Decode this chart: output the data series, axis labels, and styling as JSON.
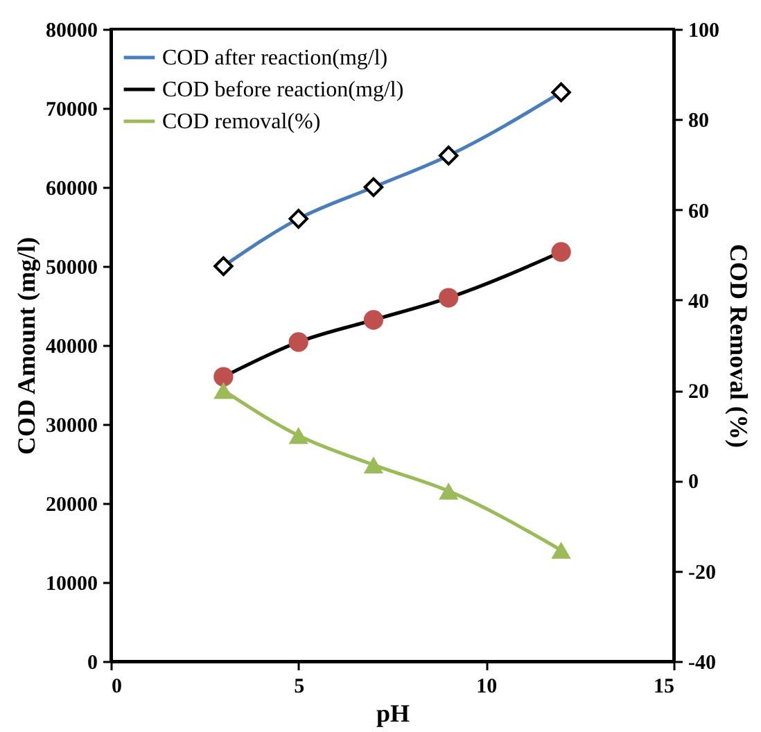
{
  "chart_data": {
    "type": "line",
    "xlabel": "pH",
    "ylabel": "COD Amount (mg/l)",
    "y2label": "COD Removal (%)",
    "x": [
      3,
      5,
      7,
      9,
      12
    ],
    "series": [
      {
        "name": "COD after reaction(mg/l)",
        "color": "#4a7ebb",
        "marker": "diamond",
        "colors": [
          "#000000",
          "#000000",
          "#000000",
          "#000000",
          "#000000"
        ],
        "values": [
          50000,
          56000,
          60000,
          64000,
          72000
        ]
      },
      {
        "name": "COD before reaction(mg/l)",
        "color": "#000000",
        "marker": "circle",
        "colors": [
          "#c0504d",
          "#c0504d",
          "#c0504d",
          "#c0504d",
          "#c0504d"
        ],
        "values": [
          36000,
          40400,
          43200,
          46000,
          51800
        ]
      },
      {
        "name": "COD removal(%)",
        "color": "#9bbb59",
        "marker": "triangle",
        "axis": "y2",
        "colors": [
          "#9bbb59",
          "#9bbb59",
          "#9bbb59",
          "#9bbb59",
          "#9bbb59"
        ],
        "values": [
          20,
          10,
          3.5,
          -2.3,
          -15.4
        ]
      }
    ],
    "xlim": [
      0,
      15
    ],
    "xticks": [
      0,
      5,
      10,
      15
    ],
    "ylim": [
      0,
      80000
    ],
    "yticks": [
      0,
      10000,
      20000,
      30000,
      40000,
      50000,
      60000,
      70000,
      80000
    ],
    "y2lim": [
      -40,
      100
    ],
    "y2ticks": [
      -40,
      -20,
      0,
      20,
      40,
      60,
      80,
      100
    ],
    "grid": false,
    "legend": "top left",
    "line_style": "solid"
  }
}
